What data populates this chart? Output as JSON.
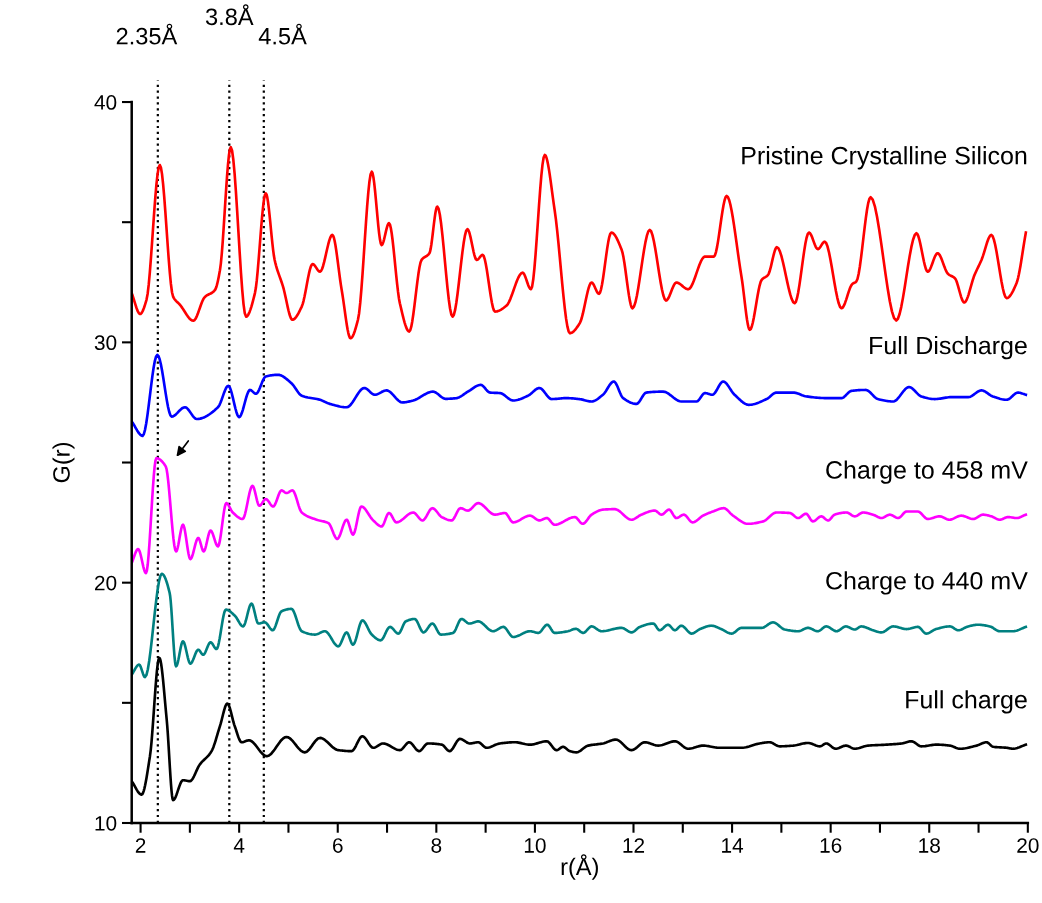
{
  "chart_data": {
    "type": "line",
    "xlabel": "r(Å)",
    "ylabel": "G(r)",
    "xlim": [
      1.82,
      20
    ],
    "ylim": [
      10,
      40
    ],
    "xticks": [
      2,
      {
        "value": 3,
        "label": null
      },
      4,
      {
        "value": 5,
        "label": null
      },
      6,
      {
        "value": 7,
        "label": null
      },
      8,
      {
        "value": 9,
        "label": null
      },
      10,
      {
        "value": 11,
        "label": null
      },
      12,
      {
        "value": 13,
        "label": null
      },
      14,
      {
        "value": 15,
        "label": null
      },
      16,
      {
        "value": 17,
        "label": null
      },
      18,
      {
        "value": 19,
        "label": null
      },
      20
    ],
    "yticks": [
      10,
      {
        "value": 15,
        "label": null
      },
      20,
      {
        "value": 25,
        "label": null
      },
      30,
      {
        "value": 35,
        "label": null
      },
      40
    ],
    "grid": false,
    "legend": false,
    "marker": "none",
    "line_style": "solid",
    "series": [
      {
        "name": "Pristine Crystalline Silicon",
        "color": "#ff0000",
        "x": [
          1.82,
          1.99,
          2.12,
          2.39,
          2.66,
          2.8,
          3.07,
          3.3,
          3.51,
          3.61,
          3.83,
          4.14,
          4.32,
          4.54,
          4.72,
          4.89,
          5.08,
          5.27,
          5.49,
          5.64,
          5.89,
          6.08,
          6.26,
          6.41,
          6.69,
          6.89,
          7.04,
          7.26,
          7.45,
          7.7,
          7.86,
          8.02,
          8.33,
          8.63,
          8.82,
          8.94,
          9.19,
          9.42,
          9.75,
          9.92,
          10.2,
          10.4,
          10.71,
          10.91,
          11.15,
          11.3,
          11.55,
          11.76,
          11.98,
          12.33,
          12.66,
          12.87,
          13.11,
          13.45,
          13.63,
          13.89,
          14.19,
          14.36,
          14.6,
          14.73,
          14.91,
          15.27,
          15.56,
          15.74,
          15.88,
          16.22,
          16.44,
          16.52,
          16.81,
          17.33,
          17.74,
          17.97,
          18.17,
          18.38,
          18.52,
          18.71,
          18.92,
          19.06,
          19.26,
          19.57,
          19.77,
          19.96
        ],
        "values": [
          32.05,
          31.18,
          31.77,
          37.38,
          31.9,
          31.56,
          30.9,
          31.88,
          32.18,
          33.0,
          38.12,
          31.07,
          32.05,
          36.2,
          33.43,
          32.32,
          30.94,
          31.49,
          33.26,
          32.94,
          34.47,
          32.18,
          30.17,
          30.94,
          37.1,
          34.05,
          34.96,
          31.63,
          30.45,
          33.43,
          33.71,
          35.65,
          31.07,
          34.71,
          33.43,
          33.64,
          31.28,
          31.52,
          32.9,
          32.21,
          37.8,
          35.51,
          30.38,
          30.8,
          32.49,
          32.02,
          34.57,
          33.85,
          31.42,
          34.68,
          31.74,
          32.49,
          32.21,
          33.57,
          33.57,
          36.09,
          32.74,
          30.52,
          32.6,
          32.81,
          33.96,
          31.63,
          34.57,
          33.88,
          34.19,
          31.42,
          32.43,
          32.53,
          36.04,
          30.91,
          34.54,
          32.94,
          33.71,
          32.85,
          32.67,
          31.66,
          32.81,
          33.43,
          34.47,
          31.84,
          32.46,
          34.57
        ]
      },
      {
        "name": "Full Discharge",
        "color": "#0000ff",
        "x": [
          1.82,
          2.04,
          2.34,
          2.63,
          2.9,
          3.14,
          3.57,
          3.78,
          4.0,
          4.22,
          4.34,
          4.54,
          4.79,
          5.06,
          5.27,
          5.64,
          5.84,
          6.18,
          6.54,
          6.75,
          6.99,
          7.31,
          7.53,
          7.93,
          8.19,
          8.41,
          8.64,
          8.9,
          9.09,
          9.29,
          9.56,
          9.86,
          10.09,
          10.34,
          10.64,
          10.9,
          11.15,
          11.38,
          11.6,
          11.79,
          12.06,
          12.26,
          12.6,
          12.97,
          13.28,
          13.45,
          13.6,
          13.82,
          14.05,
          14.34,
          14.7,
          14.9,
          15.24,
          15.51,
          15.91,
          16.22,
          16.42,
          16.71,
          16.96,
          17.27,
          17.59,
          17.84,
          18.11,
          18.45,
          18.79,
          19.06,
          19.29,
          19.57,
          19.8,
          19.96
        ],
        "values": [
          26.71,
          26.11,
          29.48,
          26.91,
          27.3,
          26.81,
          27.3,
          28.19,
          26.89,
          28.02,
          27.86,
          28.58,
          28.65,
          28.3,
          27.78,
          27.61,
          27.44,
          27.3,
          28.1,
          27.82,
          28.0,
          27.5,
          27.58,
          27.95,
          27.65,
          27.68,
          27.95,
          28.23,
          27.91,
          27.89,
          27.58,
          27.78,
          28.1,
          27.64,
          27.68,
          27.64,
          27.54,
          27.82,
          28.37,
          27.68,
          27.44,
          27.91,
          27.95,
          27.54,
          27.54,
          27.89,
          27.82,
          28.37,
          27.82,
          27.4,
          27.64,
          27.91,
          27.91,
          27.75,
          27.68,
          27.68,
          27.98,
          28.02,
          27.64,
          27.54,
          28.14,
          27.75,
          27.64,
          27.72,
          27.72,
          28.0,
          27.75,
          27.61,
          27.91,
          27.82
        ]
      },
      {
        "name": "Charge to 458 mV",
        "color": "#ff00ff",
        "x": [
          1.82,
          1.95,
          2.11,
          2.32,
          2.51,
          2.72,
          2.86,
          3.01,
          3.17,
          3.28,
          3.42,
          3.57,
          3.74,
          3.87,
          4.07,
          4.27,
          4.41,
          4.54,
          4.69,
          4.86,
          4.96,
          5.08,
          5.27,
          5.57,
          5.81,
          5.99,
          6.18,
          6.31,
          6.48,
          6.72,
          6.89,
          7.04,
          7.19,
          7.53,
          7.72,
          7.92,
          8.11,
          8.31,
          8.49,
          8.64,
          8.85,
          9.19,
          9.39,
          9.56,
          9.9,
          10.09,
          10.24,
          10.4,
          10.81,
          10.97,
          11.15,
          11.38,
          11.62,
          11.96,
          12.16,
          12.43,
          12.57,
          12.72,
          12.87,
          13.02,
          13.2,
          13.41,
          13.61,
          13.83,
          14.02,
          14.32,
          14.63,
          14.9,
          15.17,
          15.34,
          15.5,
          15.64,
          15.81,
          15.95,
          16.08,
          16.32,
          16.49,
          16.66,
          16.86,
          17.03,
          17.2,
          17.37,
          17.54,
          17.77,
          17.97,
          18.21,
          18.41,
          18.65,
          18.89,
          19.09,
          19.26,
          19.43,
          19.6,
          19.77,
          19.96
        ],
        "values": [
          20.82,
          21.4,
          20.4,
          25.18,
          24.84,
          21.3,
          22.41,
          20.98,
          21.86,
          21.3,
          22.17,
          21.51,
          23.31,
          22.92,
          22.65,
          24.03,
          23.2,
          23.48,
          23.17,
          23.84,
          23.73,
          23.84,
          22.92,
          22.62,
          22.48,
          21.82,
          22.62,
          22.0,
          23.17,
          22.59,
          22.34,
          22.9,
          22.51,
          22.92,
          22.59,
          23.1,
          22.73,
          22.59,
          23.1,
          23.0,
          23.31,
          22.83,
          22.9,
          22.51,
          22.79,
          22.59,
          22.69,
          22.41,
          22.73,
          22.45,
          22.83,
          23.04,
          23.06,
          22.62,
          22.83,
          23.0,
          22.83,
          23.04,
          22.69,
          22.83,
          22.51,
          22.79,
          22.96,
          23.1,
          22.79,
          22.45,
          22.55,
          22.92,
          22.9,
          22.69,
          22.87,
          22.55,
          22.76,
          22.59,
          22.83,
          22.92,
          22.76,
          22.92,
          22.83,
          22.69,
          22.83,
          22.69,
          22.96,
          22.96,
          22.65,
          22.76,
          22.62,
          22.79,
          22.65,
          22.83,
          22.76,
          22.62,
          22.73,
          22.69,
          22.83
        ]
      },
      {
        "name": "Charge to 440 mV",
        "color": "#008080",
        "x": [
          1.82,
          1.97,
          2.09,
          2.43,
          2.59,
          2.72,
          2.86,
          3.01,
          3.17,
          3.27,
          3.42,
          3.54,
          3.73,
          3.91,
          4.08,
          4.25,
          4.39,
          4.52,
          4.68,
          4.86,
          5.06,
          5.27,
          5.54,
          5.74,
          6.01,
          6.18,
          6.31,
          6.5,
          6.69,
          6.87,
          7.06,
          7.23,
          7.38,
          7.56,
          7.74,
          7.92,
          8.09,
          8.34,
          8.51,
          8.67,
          8.85,
          9.15,
          9.36,
          9.56,
          9.9,
          10.07,
          10.25,
          10.4,
          10.67,
          10.83,
          10.98,
          11.15,
          11.35,
          11.76,
          11.96,
          12.13,
          12.4,
          12.53,
          12.7,
          12.84,
          12.97,
          13.18,
          13.35,
          13.58,
          13.78,
          13.99,
          14.19,
          14.6,
          14.83,
          15.07,
          15.34,
          15.54,
          15.74,
          15.91,
          16.12,
          16.31,
          16.49,
          16.62,
          16.86,
          17.03,
          17.27,
          17.54,
          17.77,
          17.94,
          18.14,
          18.42,
          18.59,
          18.79,
          18.99,
          19.23,
          19.43,
          19.7,
          19.96
        ],
        "values": [
          16.17,
          16.59,
          16.07,
          20.37,
          19.57,
          16.52,
          17.56,
          16.63,
          17.21,
          17.0,
          17.52,
          17.24,
          18.88,
          18.63,
          18.18,
          19.13,
          18.3,
          18.35,
          18.02,
          18.81,
          18.91,
          17.98,
          17.84,
          17.98,
          17.35,
          17.93,
          17.42,
          18.43,
          17.84,
          17.6,
          18.16,
          17.88,
          18.39,
          18.49,
          17.93,
          18.3,
          17.84,
          17.91,
          18.49,
          18.3,
          18.39,
          17.98,
          18.16,
          17.74,
          17.98,
          17.91,
          18.25,
          17.91,
          17.98,
          18.08,
          17.91,
          18.18,
          17.98,
          18.12,
          17.93,
          18.16,
          18.3,
          18.02,
          18.25,
          18.02,
          18.21,
          17.88,
          18.07,
          18.21,
          18.07,
          17.88,
          18.12,
          18.12,
          18.35,
          18.05,
          17.98,
          18.12,
          17.98,
          18.18,
          17.98,
          18.18,
          18.05,
          18.18,
          18.02,
          17.93,
          18.18,
          18.07,
          18.16,
          17.88,
          18.07,
          18.18,
          18.02,
          18.18,
          18.25,
          18.18,
          17.98,
          17.98,
          18.16
        ]
      },
      {
        "name": "Full charge",
        "color": "#000000",
        "x": [
          1.82,
          2.02,
          2.19,
          2.38,
          2.53,
          2.66,
          2.86,
          3.0,
          3.2,
          3.44,
          3.61,
          3.76,
          3.91,
          4.05,
          4.2,
          4.56,
          4.96,
          5.33,
          5.64,
          6.01,
          6.28,
          6.5,
          6.72,
          6.92,
          7.26,
          7.45,
          7.65,
          7.83,
          8.11,
          8.27,
          8.48,
          8.68,
          8.85,
          9.02,
          9.29,
          9.59,
          9.9,
          10.24,
          10.44,
          10.57,
          10.71,
          10.84,
          11.08,
          11.38,
          11.64,
          11.96,
          12.23,
          12.5,
          12.84,
          13.11,
          13.41,
          13.75,
          14.19,
          14.56,
          14.76,
          14.97,
          15.24,
          15.54,
          15.78,
          15.91,
          16.1,
          16.31,
          16.49,
          16.76,
          17.13,
          17.44,
          17.64,
          17.84,
          18.15,
          18.42,
          18.62,
          18.96,
          19.16,
          19.3,
          19.57,
          19.7,
          19.96
        ],
        "values": [
          11.74,
          11.18,
          12.78,
          16.87,
          14.3,
          10.95,
          11.78,
          11.74,
          12.43,
          12.99,
          14.03,
          14.97,
          14.03,
          13.36,
          13.44,
          12.78,
          13.58,
          12.94,
          13.54,
          13.03,
          12.99,
          13.61,
          13.13,
          13.31,
          13.03,
          13.36,
          12.99,
          13.31,
          13.26,
          12.99,
          13.5,
          13.31,
          13.36,
          13.13,
          13.31,
          13.36,
          13.26,
          13.4,
          13.03,
          13.17,
          12.99,
          12.94,
          13.22,
          13.31,
          13.47,
          13.03,
          13.36,
          13.22,
          13.4,
          13.09,
          13.22,
          13.13,
          13.13,
          13.31,
          13.36,
          13.19,
          13.22,
          13.33,
          13.19,
          13.31,
          13.09,
          13.22,
          13.09,
          13.22,
          13.26,
          13.31,
          13.4,
          13.19,
          13.26,
          13.22,
          13.09,
          13.22,
          13.36,
          13.17,
          13.13,
          13.09,
          13.26
        ]
      }
    ],
    "ref_lines": [
      {
        "axis": "x",
        "value": 2.35,
        "label": "2.35Å",
        "color": "#000000",
        "line_style": "dotted"
      },
      {
        "axis": "x",
        "value": 3.8,
        "label": "3.8Å",
        "color": "#000000",
        "line_style": "dotted"
      },
      {
        "axis": "x",
        "value": 4.5,
        "label": "4.5Å",
        "color": "#000000",
        "line_style": "dotted"
      }
    ]
  }
}
